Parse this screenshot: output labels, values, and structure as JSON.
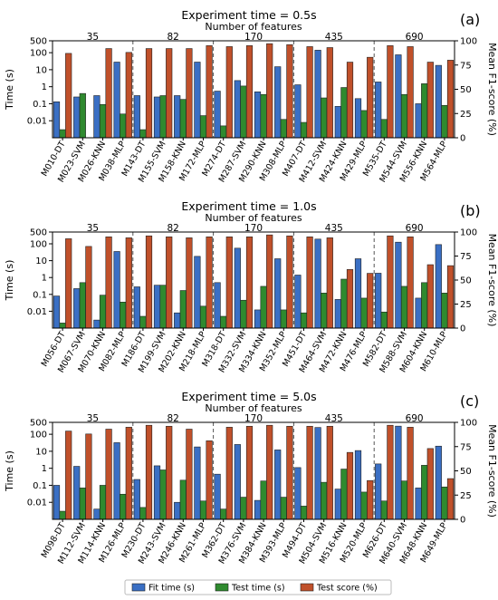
{
  "chart_data": [
    {
      "type": "bar",
      "panel_label": "(a)",
      "title": "Experiment time = 0.5s",
      "top_axis_label": "Number of features",
      "feature_groups": [
        "35",
        "82",
        "170",
        "435",
        "690"
      ],
      "categories": [
        "M010-DT",
        "M023-SVM",
        "M026-KNN",
        "M038-MLP",
        "M143-DT",
        "M155-SVM",
        "M158-KNN",
        "M172-MLP",
        "M274-DT",
        "M287-SVM",
        "M290-KNN",
        "M308-MLP",
        "M407-DT",
        "M412-SVM",
        "M424-KNN",
        "M429-MLP",
        "M535-DT",
        "M544-SVM",
        "M556-KNN",
        "M564-MLP"
      ],
      "ylabel": "Time (s)",
      "y2label": "Mean F1-score (%)",
      "ylim": [
        0.001,
        500
      ],
      "y2lim": [
        0,
        100
      ],
      "yticks": [
        "0.01",
        "0.1",
        "1",
        "10",
        "100",
        "500"
      ],
      "y2ticks": [
        "0",
        "25",
        "50",
        "75",
        "100"
      ],
      "series": [
        {
          "name": "Fit time (s)",
          "axis": "left",
          "values": [
            0.13,
            0.25,
            0.3,
            28,
            0.3,
            0.25,
            0.3,
            28,
            0.55,
            2.3,
            0.5,
            15,
            1.3,
            140,
            0.07,
            0.2,
            1.9,
            75,
            0.1,
            18
          ]
        },
        {
          "name": "Test time (s)",
          "axis": "left",
          "values": [
            0.003,
            0.4,
            0.09,
            0.025,
            0.003,
            0.3,
            0.18,
            0.02,
            0.005,
            1.1,
            0.35,
            0.012,
            0.008,
            0.22,
            0.9,
            0.04,
            0.012,
            0.35,
            1.5,
            0.08
          ]
        },
        {
          "name": "Test score (%)",
          "axis": "right",
          "values": [
            87,
            0,
            92,
            88,
            92,
            92,
            92,
            95,
            94,
            95,
            97,
            96,
            94,
            93,
            78,
            83,
            95,
            94,
            78,
            80
          ]
        }
      ]
    },
    {
      "type": "bar",
      "panel_label": "(b)",
      "title": "Experiment time = 1.0s",
      "top_axis_label": "Number of features",
      "feature_groups": [
        "35",
        "82",
        "170",
        "435",
        "690"
      ],
      "categories": [
        "M056-DT",
        "M067-SVM",
        "M070-KNN",
        "M082-MLP",
        "M186-DT",
        "M199-SVM",
        "M202-KNN",
        "M218-MLP",
        "M318-DT",
        "M332-SVM",
        "M334-KNN",
        "M352-MLP",
        "M451-DT",
        "M464-SVM",
        "M472-KNN",
        "M476-MLP",
        "M582-DT",
        "M588-SVM",
        "M604-KNN",
        "M610-MLP"
      ],
      "ylabel": "Time (s)",
      "y2label": "Mean F1-score (%)",
      "ylim": [
        0.001,
        500
      ],
      "y2lim": [
        0,
        100
      ],
      "yticks": [
        "0.01",
        "0.1",
        "1",
        "10",
        "100",
        "500"
      ],
      "y2ticks": [
        "0",
        "25",
        "50",
        "75",
        "100"
      ],
      "series": [
        {
          "name": "Fit time (s)",
          "axis": "left",
          "values": [
            0.08,
            0.22,
            0.003,
            35,
            0.28,
            0.35,
            0.008,
            18,
            0.5,
            55,
            0.012,
            13,
            1.4,
            190,
            0.05,
            13,
            1.8,
            125,
            0.06,
            90
          ]
        },
        {
          "name": "Test time (s)",
          "axis": "left",
          "values": [
            0.002,
            0.5,
            0.09,
            0.035,
            0.005,
            0.35,
            0.17,
            0.02,
            0.005,
            0.045,
            0.3,
            0.012,
            0.008,
            0.12,
            0.8,
            0.06,
            0.009,
            0.3,
            0.5,
            0.12
          ]
        },
        {
          "name": "Test score (%)",
          "axis": "right",
          "values": [
            93,
            85,
            95,
            94,
            96,
            95,
            94,
            95,
            95,
            95,
            97,
            96,
            95,
            94,
            61,
            57,
            96,
            95,
            66,
            65
          ]
        }
      ]
    },
    {
      "type": "bar",
      "panel_label": "(c)",
      "title": "Experiment time = 5.0s",
      "top_axis_label": "Number of features",
      "feature_groups": [
        "35",
        "82",
        "170",
        "435",
        "690"
      ],
      "categories": [
        "M098-DT",
        "M112-SVM",
        "M114-KNN",
        "M126-MLP",
        "M230-DT",
        "M243-SVM",
        "M246-KNN",
        "M261-MLP",
        "M362-DT",
        "M376-SVM",
        "M384-KNN",
        "M393-MLP",
        "M494-DT",
        "M504-SVM",
        "M516-KNN",
        "M520-MLP",
        "M626-DT",
        "M640-SVM",
        "M648-KNN",
        "M649-MLP"
      ],
      "ylabel": "Time (s)",
      "y2label": "Mean F1-score (%)",
      "ylim": [
        0.001,
        500
      ],
      "y2lim": [
        0,
        100
      ],
      "yticks": [
        "0.01",
        "0.1",
        "1",
        "10",
        "100",
        "500"
      ],
      "y2ticks": [
        "0",
        "25",
        "50",
        "75",
        "100"
      ],
      "series": [
        {
          "name": "Fit time (s)",
          "axis": "left",
          "values": [
            0.1,
            1.3,
            0.004,
            32,
            0.22,
            1.4,
            0.01,
            18,
            0.45,
            25,
            0.013,
            12,
            1.1,
            250,
            0.06,
            11,
            1.8,
            300,
            0.07,
            20
          ]
        },
        {
          "name": "Test time (s)",
          "axis": "left",
          "values": [
            0.003,
            0.07,
            0.1,
            0.03,
            0.005,
            0.8,
            0.2,
            0.012,
            0.004,
            0.02,
            0.18,
            0.02,
            0.006,
            0.15,
            0.9,
            0.04,
            0.012,
            0.18,
            1.5,
            0.08
          ]
        },
        {
          "name": "Test score (%)",
          "axis": "right",
          "values": [
            91,
            88,
            93,
            95,
            97,
            96,
            93,
            81,
            95,
            96,
            97,
            96,
            96,
            96,
            69,
            40,
            97,
            95,
            73,
            42
          ]
        }
      ]
    }
  ],
  "legend": [
    {
      "label": "Fit time (s)",
      "color": "#3a6fc4"
    },
    {
      "label": "Test time (s)",
      "color": "#2f8a2f"
    },
    {
      "label": "Test score (%)",
      "color": "#c0502a"
    }
  ],
  "colors": {
    "fit": "#3a6fc4",
    "test": "#2f8a2f",
    "score": "#c0502a",
    "edge": "#222222",
    "sep": "#555555"
  }
}
